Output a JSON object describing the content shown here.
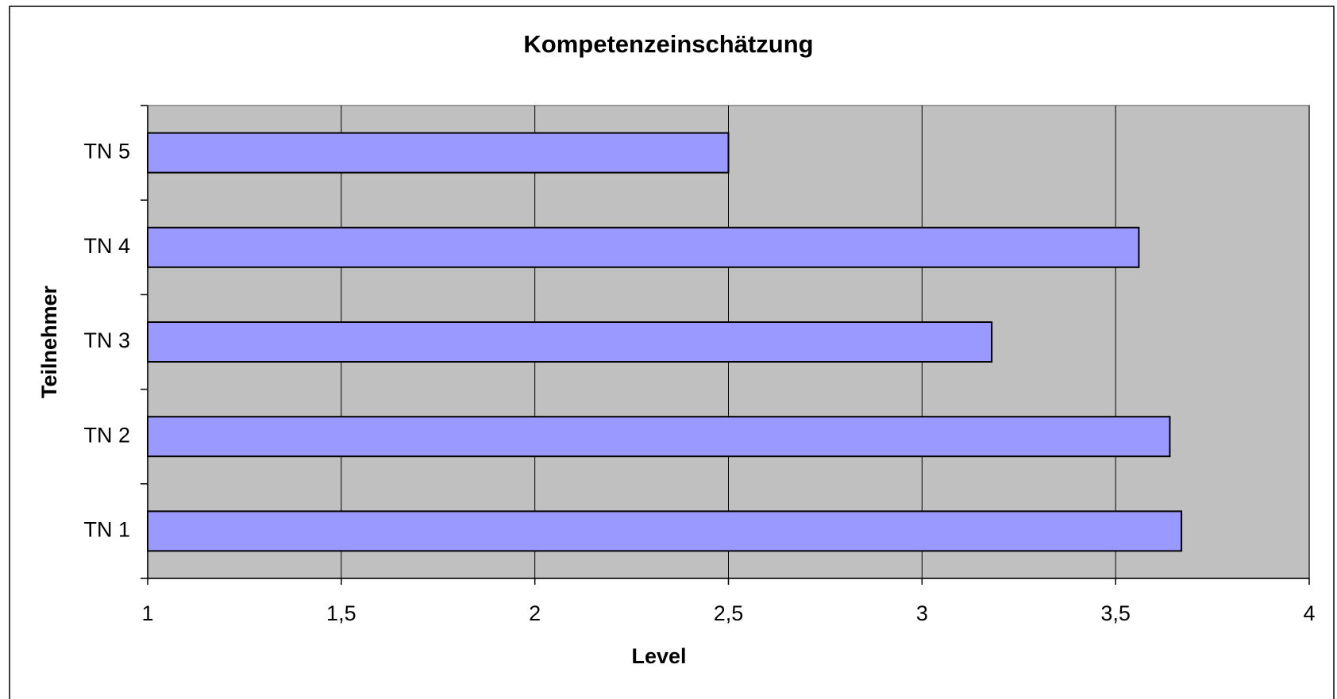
{
  "chart_data": {
    "type": "bar",
    "orientation": "horizontal",
    "title": "Kompetenzeinschätzung",
    "x_label": "Level",
    "y_label": "Teilnehmer",
    "categories": [
      "TN 1",
      "TN 2",
      "TN 3",
      "TN 4",
      "TN 5"
    ],
    "values": [
      3.67,
      3.64,
      3.18,
      3.56,
      2.5
    ],
    "color": "#9999ff",
    "xlim": [
      1,
      4
    ],
    "xticks": [
      1,
      {
        "value": 1.5,
        "label": "1,5"
      },
      2,
      {
        "value": 2.5,
        "label": "2,5"
      },
      3,
      {
        "value": 3.5,
        "label": "3,5"
      },
      4
    ],
    "grid": true
  }
}
